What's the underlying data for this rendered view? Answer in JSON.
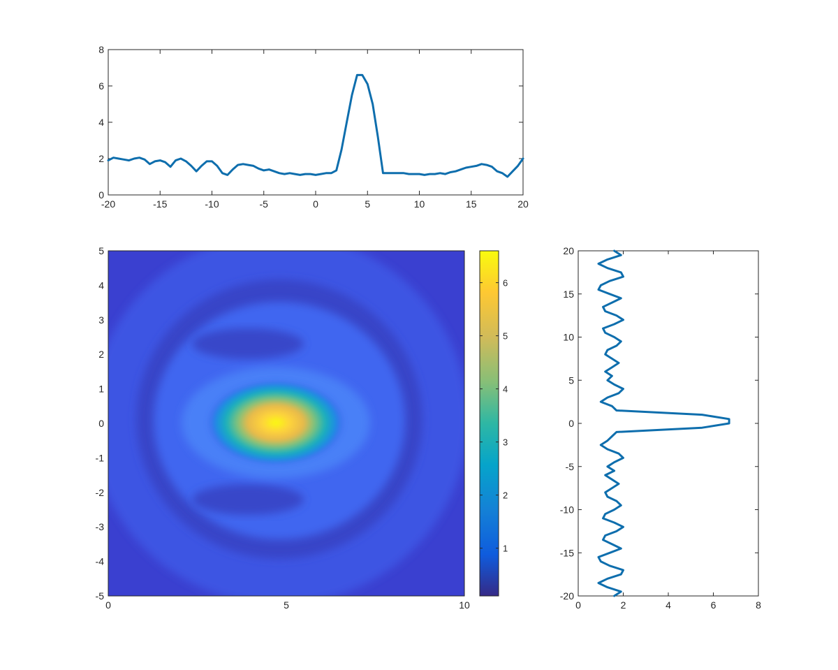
{
  "chart_data": [
    {
      "type": "line",
      "xlim": [
        -20,
        20
      ],
      "ylim": [
        0,
        8
      ],
      "xticks": [
        "-20",
        "-15",
        "-10",
        "-5",
        "0",
        "5",
        "10",
        "15",
        "20"
      ],
      "yticks": [
        "0",
        "2",
        "4",
        "6",
        "8"
      ],
      "grid": false,
      "color": "#0e6ead",
      "x": [
        -20,
        -19.5,
        -19,
        -18.5,
        -18,
        -17.5,
        -17,
        -16.5,
        -16,
        -15.5,
        -15,
        -14.5,
        -14,
        -13.5,
        -13,
        -12.5,
        -12,
        -11.5,
        -11,
        -10.5,
        -10,
        -9.5,
        -9,
        -8.5,
        -8,
        -7.5,
        -7,
        -6.5,
        -6,
        -5.5,
        -5,
        -4.5,
        -4,
        -3.5,
        -3,
        -2.5,
        -2,
        -1.5,
        -1,
        -0.5,
        0,
        0.5,
        1,
        1.5,
        2,
        2.5,
        3,
        3.5,
        4,
        4.5,
        5,
        5.5,
        6,
        6.5,
        7,
        7.5,
        8,
        8.5,
        9,
        9.5,
        10,
        10.5,
        11,
        11.5,
        12,
        12.5,
        13,
        13.5,
        14,
        14.5,
        15,
        15.5,
        16,
        16.5,
        17,
        17.5,
        18,
        18.5,
        19,
        19.5,
        20
      ],
      "y": [
        1.9,
        2.05,
        2.0,
        1.95,
        1.9,
        2.0,
        2.05,
        1.95,
        1.7,
        1.85,
        1.9,
        1.8,
        1.55,
        1.9,
        2.0,
        1.85,
        1.6,
        1.3,
        1.6,
        1.85,
        1.85,
        1.6,
        1.2,
        1.1,
        1.4,
        1.65,
        1.7,
        1.65,
        1.6,
        1.45,
        1.35,
        1.4,
        1.3,
        1.2,
        1.15,
        1.2,
        1.15,
        1.1,
        1.15,
        1.15,
        1.1,
        1.15,
        1.2,
        1.2,
        1.35,
        2.5,
        4.0,
        5.5,
        6.6,
        6.6,
        6.1,
        5.0,
        3.2,
        1.2,
        1.2,
        1.2,
        1.2,
        1.2,
        1.15,
        1.15,
        1.15,
        1.1,
        1.15,
        1.15,
        1.2,
        1.15,
        1.25,
        1.3,
        1.4,
        1.5,
        1.55,
        1.6,
        1.7,
        1.65,
        1.55,
        1.3,
        1.2,
        1.0,
        1.3,
        1.6,
        2.0
      ]
    },
    {
      "type": "heatmap",
      "xlim": [
        0,
        10
      ],
      "ylim": [
        -5,
        5
      ],
      "xticks": [
        "0",
        "5",
        "10"
      ],
      "yticks": [
        "-5",
        "-4",
        "-3",
        "-2",
        "-1",
        "0",
        "1",
        "2",
        "3",
        "4",
        "5"
      ],
      "peak": {
        "x": 4.8,
        "y": 0.0,
        "value": 6.6
      },
      "colorbar": {
        "min": 0.1,
        "max": 6.6,
        "ticks": [
          "1",
          "2",
          "3",
          "4",
          "5",
          "6"
        ],
        "colormap": "parula"
      }
    },
    {
      "type": "line",
      "orientation": "vertical",
      "xlim": [
        0,
        8
      ],
      "ylim": [
        -20,
        20
      ],
      "xticks": [
        "0",
        "2",
        "4",
        "6",
        "8"
      ],
      "yticks": [
        "-20",
        "-15",
        "-10",
        "-5",
        "0",
        "5",
        "10",
        "15",
        "20"
      ],
      "grid": false,
      "color": "#0e6ead",
      "y": [
        20,
        19.5,
        19,
        18.5,
        18,
        17.5,
        17,
        16.5,
        16,
        15.5,
        15,
        14.5,
        14,
        13.5,
        13,
        12.5,
        12,
        11.5,
        11,
        10.5,
        10,
        9.5,
        9,
        8.5,
        8,
        7.5,
        7,
        6.5,
        6,
        5.5,
        5,
        4.5,
        4,
        3.5,
        3,
        2.5,
        2,
        1.5,
        1,
        0.5,
        0,
        -0.5,
        -1,
        -1.5,
        -2,
        -2.5,
        -3,
        -3.5,
        -4,
        -4.5,
        -5,
        -5.5,
        -6,
        -6.5,
        -7,
        -7.5,
        -8,
        -8.5,
        -9,
        -9.5,
        -10,
        -10.5,
        -11,
        -11.5,
        -12,
        -12.5,
        -13,
        -13.5,
        -14,
        -14.5,
        -15,
        -15.5,
        -16,
        -16.5,
        -17,
        -17.5,
        -18,
        -18.5,
        -19,
        -19.5,
        -20
      ],
      "x": [
        1.6,
        1.9,
        1.3,
        0.9,
        1.3,
        1.9,
        2.0,
        1.4,
        1.0,
        0.9,
        1.4,
        1.9,
        1.5,
        1.1,
        1.2,
        1.7,
        2.0,
        1.6,
        1.1,
        1.2,
        1.6,
        1.9,
        1.7,
        1.3,
        1.2,
        1.5,
        1.8,
        1.5,
        1.2,
        1.5,
        1.3,
        1.6,
        2.0,
        1.8,
        1.3,
        1.0,
        1.5,
        1.7,
        5.5,
        6.7,
        6.7,
        5.5,
        1.7,
        1.5,
        1.3,
        1.0,
        1.3,
        1.8,
        2.0,
        1.6,
        1.3,
        1.6,
        1.2,
        1.5,
        1.8,
        1.5,
        1.2,
        1.3,
        1.7,
        1.9,
        1.6,
        1.2,
        1.1,
        1.6,
        2.0,
        1.7,
        1.2,
        1.1,
        1.5,
        1.9,
        1.4,
        0.9,
        1.0,
        1.4,
        2.0,
        1.9,
        1.3,
        0.9,
        1.3,
        1.9,
        1.6
      ]
    }
  ]
}
